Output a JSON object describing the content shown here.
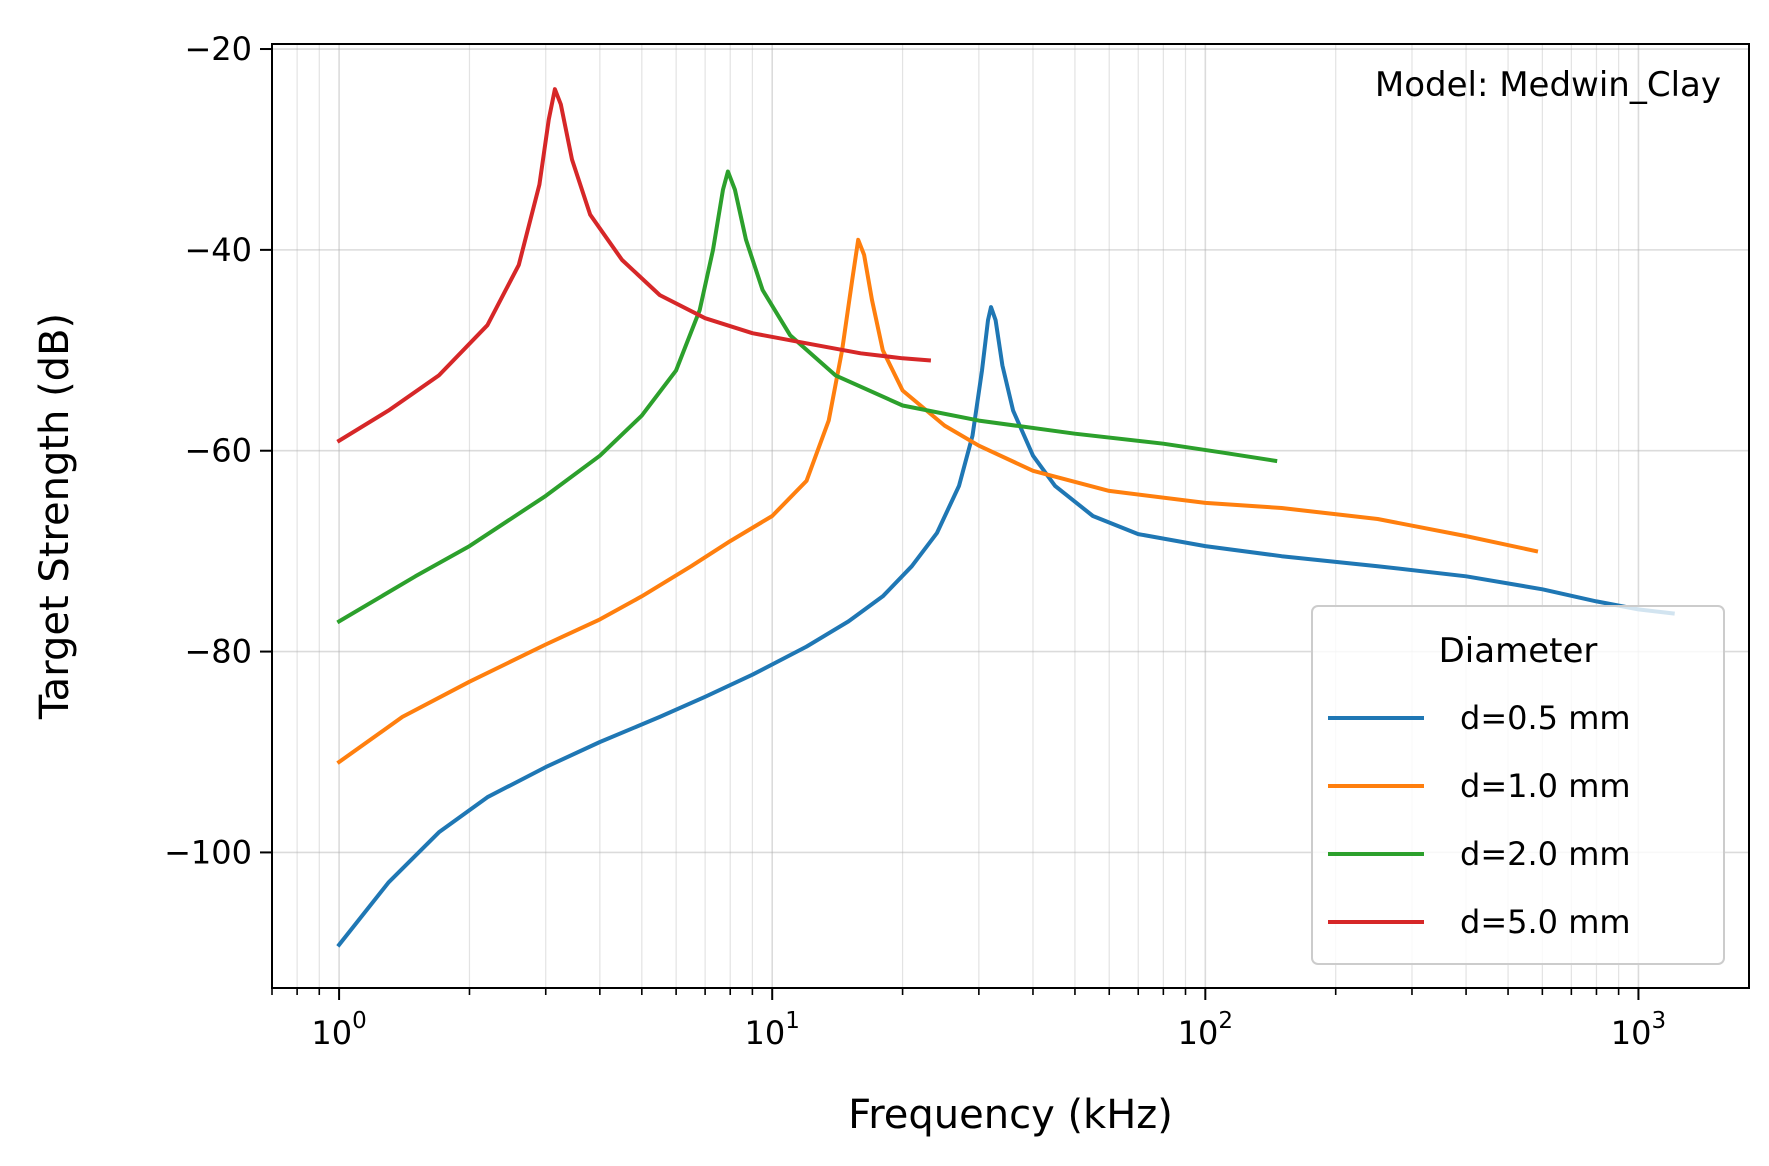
{
  "chart_data": {
    "type": "line",
    "xlabel": "Frequency (kHz)",
    "ylabel": "Target Strength (dB)",
    "annotation": "Model: Medwin_Clay",
    "xscale": "log",
    "xlim": [
      0.7,
      1800
    ],
    "ylim": [
      -113.5,
      -19.5
    ],
    "x_ticks": [
      {
        "value": 1,
        "base": "10",
        "exp": "0"
      },
      {
        "value": 10,
        "base": "10",
        "exp": "1"
      },
      {
        "value": 100,
        "base": "10",
        "exp": "2"
      },
      {
        "value": 1000,
        "base": "10",
        "exp": "3"
      }
    ],
    "y_ticks": [
      {
        "value": -20,
        "label": "−20"
      },
      {
        "value": -40,
        "label": "−40"
      },
      {
        "value": -60,
        "label": "−60"
      },
      {
        "value": -80,
        "label": "−80"
      },
      {
        "value": -100,
        "label": "−100"
      }
    ],
    "grid": true,
    "legend": {
      "title": "Diameter",
      "placement": "lower-right"
    },
    "series": [
      {
        "name": "d=0.5 mm",
        "color": "#1f77b4",
        "points": [
          [
            1,
            -109.2
          ],
          [
            1.3,
            -103
          ],
          [
            1.7,
            -98
          ],
          [
            2.2,
            -94.5
          ],
          [
            3,
            -91.5
          ],
          [
            4,
            -89
          ],
          [
            5.5,
            -86.5
          ],
          [
            7,
            -84.5
          ],
          [
            9,
            -82.3
          ],
          [
            12,
            -79.5
          ],
          [
            15,
            -77
          ],
          [
            18,
            -74.5
          ],
          [
            21,
            -71.5
          ],
          [
            24,
            -68.2
          ],
          [
            27,
            -63.5
          ],
          [
            29,
            -58.5
          ],
          [
            30.5,
            -52
          ],
          [
            31.5,
            -47
          ],
          [
            32,
            -45.7
          ],
          [
            32.8,
            -47
          ],
          [
            34,
            -51.5
          ],
          [
            36,
            -56
          ],
          [
            40,
            -60.5
          ],
          [
            45,
            -63.5
          ],
          [
            55,
            -66.5
          ],
          [
            70,
            -68.3
          ],
          [
            100,
            -69.5
          ],
          [
            150,
            -70.5
          ],
          [
            250,
            -71.5
          ],
          [
            400,
            -72.5
          ],
          [
            600,
            -73.8
          ],
          [
            800,
            -75
          ],
          [
            1000,
            -75.8
          ],
          [
            1200,
            -76.2
          ]
        ]
      },
      {
        "name": "d=1.0 mm",
        "color": "#ff7f0e",
        "points": [
          [
            1,
            -91
          ],
          [
            1.4,
            -86.5
          ],
          [
            2,
            -83
          ],
          [
            3,
            -79.3
          ],
          [
            4,
            -76.8
          ],
          [
            5,
            -74.5
          ],
          [
            6.5,
            -71.5
          ],
          [
            8,
            -69
          ],
          [
            10,
            -66.5
          ],
          [
            12,
            -63
          ],
          [
            13.5,
            -57
          ],
          [
            14.5,
            -50
          ],
          [
            15.3,
            -43
          ],
          [
            15.8,
            -39
          ],
          [
            16.3,
            -40.5
          ],
          [
            17,
            -45
          ],
          [
            18,
            -50
          ],
          [
            20,
            -54
          ],
          [
            25,
            -57.5
          ],
          [
            30,
            -59.5
          ],
          [
            40,
            -62
          ],
          [
            60,
            -64
          ],
          [
            100,
            -65.2
          ],
          [
            150,
            -65.7
          ],
          [
            250,
            -66.8
          ],
          [
            400,
            -68.5
          ],
          [
            580,
            -70
          ]
        ]
      },
      {
        "name": "d=2.0 mm",
        "color": "#2ca02c",
        "points": [
          [
            1,
            -77
          ],
          [
            1.5,
            -72.5
          ],
          [
            2,
            -69.5
          ],
          [
            3,
            -64.5
          ],
          [
            4,
            -60.5
          ],
          [
            5,
            -56.5
          ],
          [
            6,
            -52
          ],
          [
            6.8,
            -46
          ],
          [
            7.3,
            -40
          ],
          [
            7.7,
            -34
          ],
          [
            7.9,
            -32.2
          ],
          [
            8.2,
            -34
          ],
          [
            8.7,
            -39
          ],
          [
            9.5,
            -44
          ],
          [
            11,
            -48.5
          ],
          [
            14,
            -52.5
          ],
          [
            20,
            -55.5
          ],
          [
            30,
            -57
          ],
          [
            50,
            -58.3
          ],
          [
            80,
            -59.3
          ],
          [
            110,
            -60.2
          ],
          [
            145,
            -61
          ]
        ]
      },
      {
        "name": "d=5.0 mm",
        "color": "#d62728",
        "points": [
          [
            1,
            -59
          ],
          [
            1.3,
            -56
          ],
          [
            1.7,
            -52.5
          ],
          [
            2.2,
            -47.5
          ],
          [
            2.6,
            -41.5
          ],
          [
            2.9,
            -33.5
          ],
          [
            3.05,
            -27
          ],
          [
            3.15,
            -24
          ],
          [
            3.25,
            -25.5
          ],
          [
            3.45,
            -31
          ],
          [
            3.8,
            -36.5
          ],
          [
            4.5,
            -41
          ],
          [
            5.5,
            -44.5
          ],
          [
            7,
            -46.8
          ],
          [
            9,
            -48.3
          ],
          [
            12,
            -49.3
          ],
          [
            16,
            -50.3
          ],
          [
            20,
            -50.8
          ],
          [
            23,
            -51
          ]
        ]
      }
    ]
  }
}
